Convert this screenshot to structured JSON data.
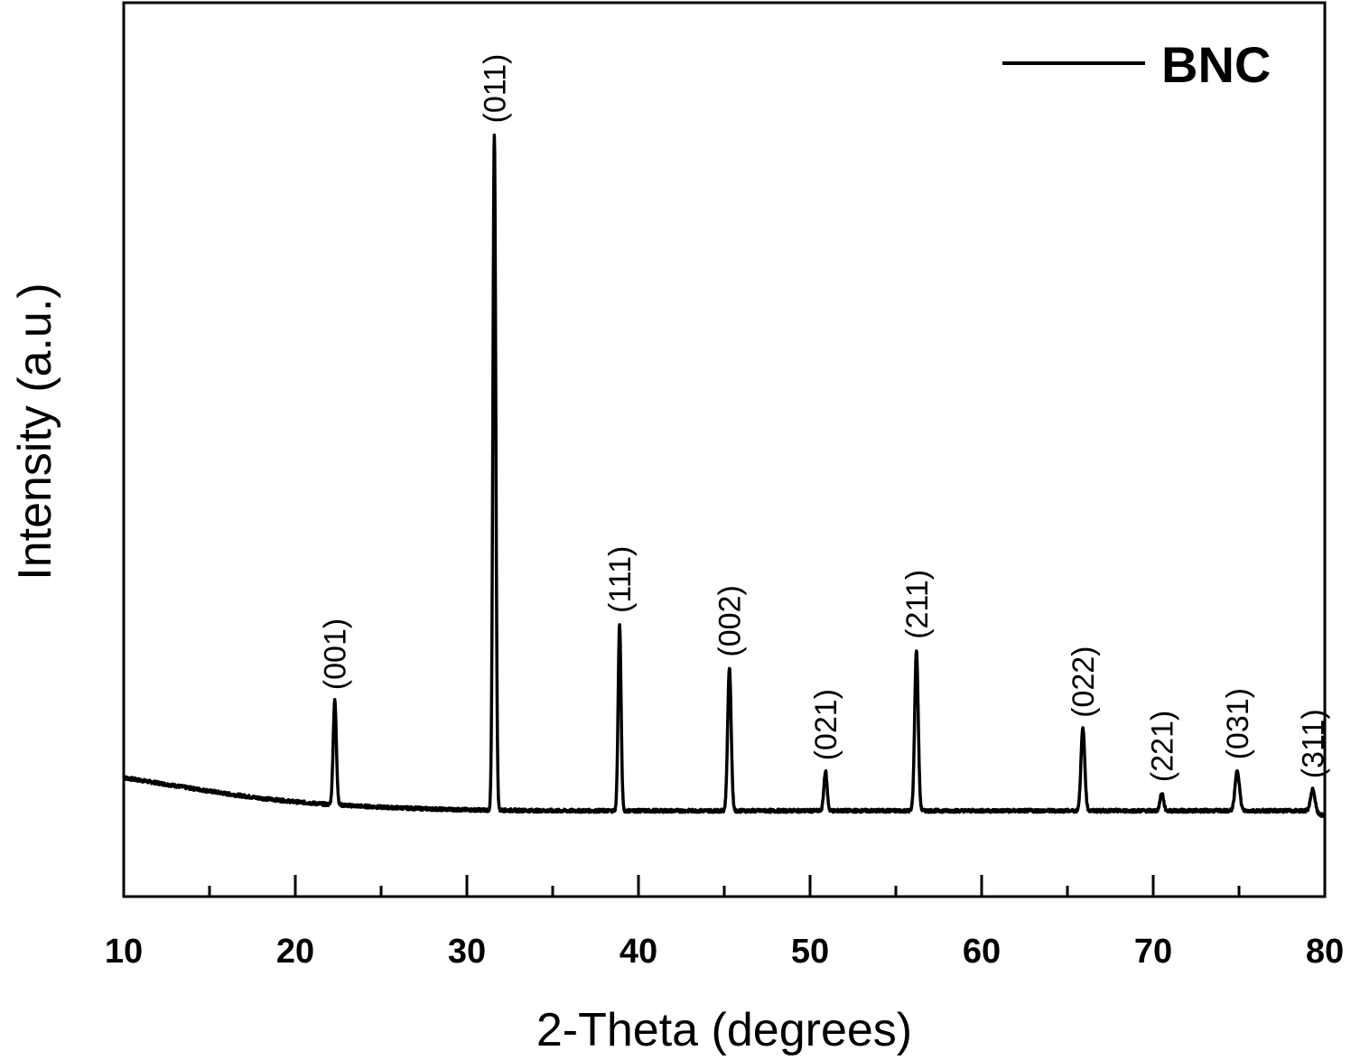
{
  "chart_data": {
    "type": "line",
    "xlabel": "2-Theta (degrees)",
    "ylabel": "Intensity (a.u.)",
    "xlim": [
      10,
      80
    ],
    "ylim": [
      0,
      100
    ],
    "x_ticks": [
      "10",
      "20",
      "30",
      "40",
      "50",
      "60",
      "70",
      "80"
    ],
    "y_ticks_shown": false,
    "grid": false,
    "legend": {
      "position": "top-right",
      "entries": [
        "BNC"
      ]
    },
    "series": [
      {
        "name": "BNC",
        "color": "#000000",
        "baseline": [
          {
            "x": 10,
            "y": 13.3
          },
          {
            "x": 12,
            "y": 12.7
          },
          {
            "x": 14,
            "y": 12.1
          },
          {
            "x": 16,
            "y": 11.5
          },
          {
            "x": 18,
            "y": 11.0
          },
          {
            "x": 20,
            "y": 10.6
          },
          {
            "x": 22,
            "y": 10.3
          },
          {
            "x": 25,
            "y": 10.0
          },
          {
            "x": 28,
            "y": 9.8
          },
          {
            "x": 30,
            "y": 9.7
          },
          {
            "x": 35,
            "y": 9.6
          },
          {
            "x": 40,
            "y": 9.6
          },
          {
            "x": 45,
            "y": 9.6
          },
          {
            "x": 50,
            "y": 9.6
          },
          {
            "x": 55,
            "y": 9.6
          },
          {
            "x": 60,
            "y": 9.6
          },
          {
            "x": 65,
            "y": 9.6
          },
          {
            "x": 70,
            "y": 9.6
          },
          {
            "x": 75,
            "y": 9.6
          },
          {
            "x": 79,
            "y": 9.6
          },
          {
            "x": 80,
            "y": 9.0
          }
        ],
        "peaks": [
          {
            "x": 22.3,
            "y": 21.9,
            "width": 0.22,
            "label": "(001)"
          },
          {
            "x": 31.6,
            "y": 85.3,
            "width": 0.2,
            "label": "(011)"
          },
          {
            "x": 38.9,
            "y": 30.5,
            "width": 0.2,
            "label": "(111)"
          },
          {
            "x": 45.3,
            "y": 25.6,
            "width": 0.24,
            "label": "(002)"
          },
          {
            "x": 50.9,
            "y": 14.0,
            "width": 0.22,
            "label": "(021)"
          },
          {
            "x": 56.2,
            "y": 27.6,
            "width": 0.24,
            "label": "(211)"
          },
          {
            "x": 65.9,
            "y": 18.8,
            "width": 0.26,
            "label": "(022)"
          },
          {
            "x": 70.5,
            "y": 11.6,
            "width": 0.24,
            "label": "(221)"
          },
          {
            "x": 74.9,
            "y": 14.1,
            "width": 0.3,
            "label": "(031)"
          },
          {
            "x": 79.3,
            "y": 12.0,
            "width": 0.3,
            "label": "(311)"
          }
        ]
      }
    ]
  }
}
